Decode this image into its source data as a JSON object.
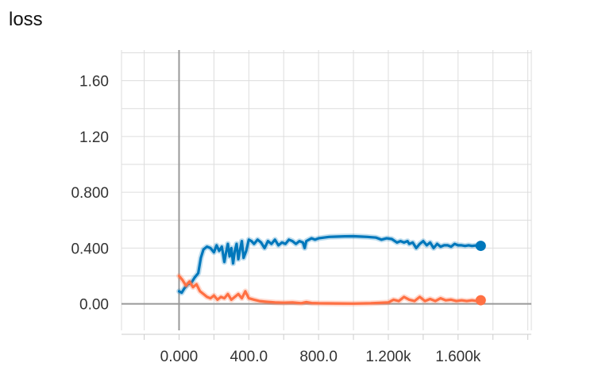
{
  "title": "loss",
  "chart_data": {
    "type": "line",
    "title": "loss",
    "xlabel": "",
    "ylabel": "",
    "xlim": [
      -330,
      2020
    ],
    "ylim": [
      -0.19,
      1.82
    ],
    "grid": true,
    "legend": "none",
    "yticks": [
      {
        "value": 1.6,
        "label": "1.60"
      },
      {
        "value": 1.2,
        "label": "1.20"
      },
      {
        "value": 0.8,
        "label": "0.800"
      },
      {
        "value": 0.4,
        "label": "0.400"
      },
      {
        "value": 0.0,
        "label": "0.00"
      }
    ],
    "xticks": [
      {
        "value": 0,
        "label": "0.000"
      },
      {
        "value": 400,
        "label": "400.0"
      },
      {
        "value": 800,
        "label": "800.0"
      },
      {
        "value": 1200,
        "label": "1.200k"
      },
      {
        "value": 1600,
        "label": "1.600k"
      }
    ],
    "series": [
      {
        "color": "#0077bb",
        "x": [
          0,
          15,
          30,
          50,
          70,
          90,
          110,
          125,
          140,
          160,
          180,
          200,
          215,
          230,
          245,
          260,
          270,
          280,
          290,
          300,
          310,
          320,
          330,
          340,
          350,
          360,
          370,
          385,
          400,
          415,
          430,
          450,
          470,
          490,
          510,
          530,
          550,
          570,
          590,
          610,
          630,
          650,
          670,
          690,
          710,
          720,
          730,
          745,
          760,
          780,
          800,
          830,
          860,
          900,
          950,
          1000,
          1050,
          1080,
          1100,
          1130,
          1160,
          1190,
          1220,
          1250,
          1270,
          1290,
          1310,
          1320,
          1340,
          1360,
          1380,
          1400,
          1420,
          1440,
          1460,
          1480,
          1500,
          1520,
          1540,
          1560,
          1580,
          1600,
          1620,
          1640,
          1660,
          1680,
          1700,
          1710,
          1720,
          1730
        ],
        "y": [
          0.09,
          0.08,
          0.11,
          0.14,
          0.15,
          0.19,
          0.22,
          0.33,
          0.39,
          0.41,
          0.4,
          0.37,
          0.42,
          0.38,
          0.41,
          0.3,
          0.37,
          0.43,
          0.34,
          0.4,
          0.29,
          0.38,
          0.43,
          0.32,
          0.39,
          0.45,
          0.33,
          0.38,
          0.46,
          0.45,
          0.43,
          0.46,
          0.44,
          0.4,
          0.45,
          0.43,
          0.46,
          0.42,
          0.44,
          0.43,
          0.46,
          0.45,
          0.43,
          0.45,
          0.44,
          0.4,
          0.45,
          0.46,
          0.47,
          0.46,
          0.47,
          0.475,
          0.48,
          0.482,
          0.484,
          0.485,
          0.482,
          0.48,
          0.478,
          0.475,
          0.46,
          0.47,
          0.465,
          0.44,
          0.45,
          0.44,
          0.45,
          0.43,
          0.44,
          0.4,
          0.43,
          0.45,
          0.42,
          0.44,
          0.4,
          0.43,
          0.41,
          0.42,
          0.42,
          0.41,
          0.43,
          0.42,
          0.42,
          0.415,
          0.42,
          0.415,
          0.418,
          0.415,
          0.416,
          0.416
        ]
      },
      {
        "color": "#ff7043",
        "x": [
          0,
          20,
          40,
          60,
          80,
          100,
          120,
          140,
          160,
          180,
          200,
          220,
          240,
          260,
          280,
          300,
          320,
          340,
          360,
          380,
          400,
          430,
          460,
          500,
          550,
          600,
          650,
          700,
          730,
          760,
          800,
          900,
          1000,
          1100,
          1200,
          1230,
          1260,
          1290,
          1320,
          1350,
          1380,
          1410,
          1440,
          1470,
          1500,
          1530,
          1560,
          1590,
          1620,
          1650,
          1680,
          1700,
          1730
        ],
        "y": [
          0.2,
          0.17,
          0.13,
          0.16,
          0.12,
          0.14,
          0.09,
          0.07,
          0.05,
          0.04,
          0.06,
          0.03,
          0.05,
          0.04,
          0.07,
          0.03,
          0.05,
          0.07,
          0.04,
          0.09,
          0.04,
          0.03,
          0.02,
          0.015,
          0.01,
          0.008,
          0.01,
          0.005,
          0.012,
          0.006,
          0.004,
          0.003,
          0.002,
          0.004,
          0.01,
          0.03,
          0.02,
          0.05,
          0.03,
          0.02,
          0.05,
          0.02,
          0.035,
          0.02,
          0.04,
          0.025,
          0.03,
          0.02,
          0.025,
          0.02,
          0.025,
          0.022,
          0.026
        ]
      }
    ]
  }
}
